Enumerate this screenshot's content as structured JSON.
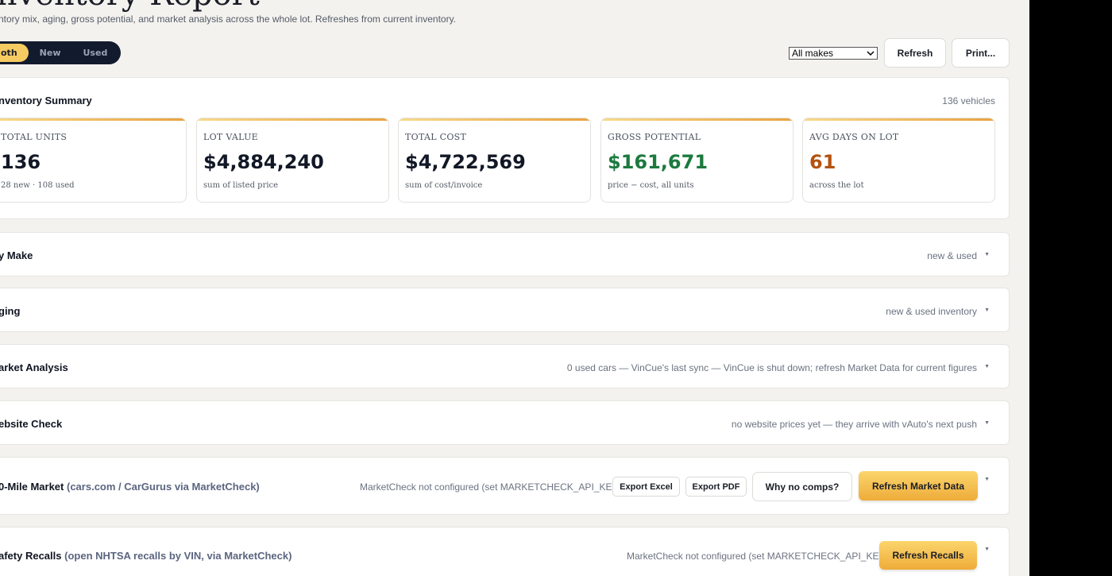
{
  "header": {
    "title": "Inventory Report",
    "subtitle": "ntory mix, aging, gross potential, and market analysis across the whole lot. Refreshes from current inventory."
  },
  "toggle": {
    "options": [
      "oth",
      "New",
      "Used"
    ],
    "active": "oth"
  },
  "toolbar": {
    "make_select": "All makes",
    "refresh_label": "Refresh",
    "print_label": "Print..."
  },
  "summary": {
    "title": "nventory Summary",
    "meta": "136 vehicles",
    "cards": [
      {
        "label": "TOTAL UNITS",
        "value": "136",
        "note": "28 new · 108 used",
        "color": "#121826"
      },
      {
        "label": "LOT VALUE",
        "value": "$4,884,240",
        "note": "sum of listed price",
        "color": "#121826"
      },
      {
        "label": "TOTAL COST",
        "value": "$4,722,569",
        "note": "sum of cost/invoice",
        "color": "#121826"
      },
      {
        "label": "GROSS POTENTIAL",
        "value": "$161,671",
        "note": "price − cost, all units",
        "color": "#1c7a3e"
      },
      {
        "label": "AVG DAYS ON LOT",
        "value": "61",
        "note": "across the lot",
        "color": "#b5520f"
      }
    ]
  },
  "sections": {
    "by_make": {
      "title": "y Make",
      "meta": "new & used"
    },
    "aging": {
      "title": "ging",
      "meta": "new & used inventory"
    },
    "market_analysis": {
      "title": "arket Analysis",
      "meta": "0 used cars — VinCue's last sync — VinCue is shut down; refresh Market Data for current figures"
    },
    "website_check": {
      "title": "ebsite Check",
      "meta": "no website prices yet — they arrive with vAuto's next push"
    },
    "mile_market": {
      "title": "0-Mile Market",
      "title_sub": "(cars.com / CarGurus via MarketCheck)",
      "meta": "MarketCheck not configured (set MARKETCHECK_API_KEY)",
      "export_excel": "Export Excel",
      "export_pdf": "Export PDF",
      "why_no_comps": "Why no comps?",
      "refresh": "Refresh Market Data"
    },
    "recalls": {
      "title": "afety Recalls",
      "title_sub": "(open NHTSA recalls by VIN, via MarketCheck)",
      "meta": "MarketCheck not configured (set MARKETCHECK_API_KEY)",
      "refresh": "Refresh Recalls"
    }
  },
  "icons": {
    "caret": "caret-down-icon",
    "select_arrow": "chevron-down-icon"
  }
}
